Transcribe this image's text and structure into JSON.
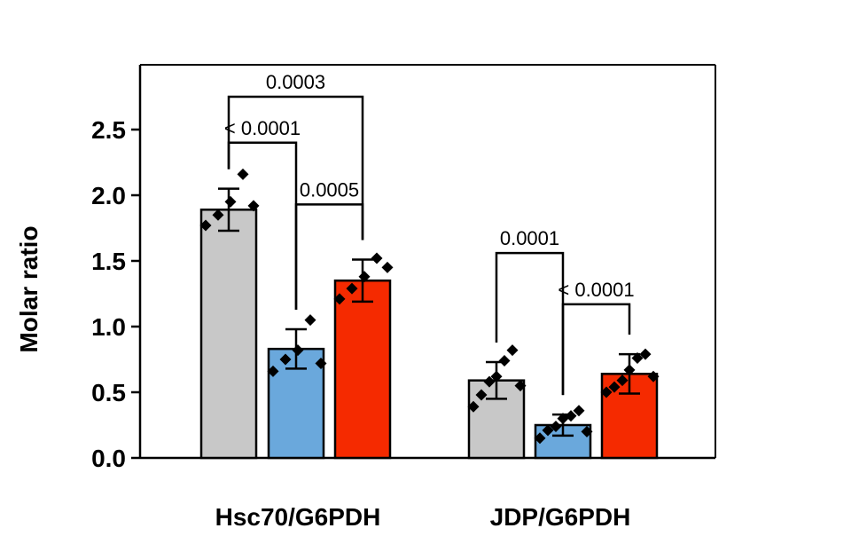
{
  "chart_data": {
    "type": "bar",
    "title": "",
    "ylabel": "Molar ratio",
    "xlabel": "",
    "ylim": [
      0,
      3.0
    ],
    "yticks": [
      0.0,
      0.5,
      1.0,
      1.5,
      2.0,
      2.5
    ],
    "ytick_labels": [
      "0.0",
      "0.5",
      "1.0",
      "1.5",
      "2.0",
      "2.5"
    ],
    "grid": false,
    "legend": "none",
    "categories": [
      "Hsc70/G6PDH",
      "JDP/G6PDH"
    ],
    "series": [
      {
        "color": "#c8c8c8",
        "values": [
          1.89,
          0.59
        ],
        "errors": [
          0.16,
          0.14
        ],
        "points": [
          [
            1.77,
            1.85,
            1.95,
            2.16,
            1.92
          ],
          [
            0.39,
            0.48,
            0.58,
            0.62,
            0.74,
            0.82,
            0.55
          ]
        ]
      },
      {
        "color": "#6aa8dc",
        "values": [
          0.83,
          0.25
        ],
        "errors": [
          0.15,
          0.08
        ],
        "points": [
          [
            0.66,
            0.75,
            0.82,
            1.05,
            0.72
          ],
          [
            0.15,
            0.21,
            0.24,
            0.3,
            0.32,
            0.36,
            0.2
          ]
        ]
      },
      {
        "color": "#f52a00",
        "values": [
          1.35,
          0.64
        ],
        "errors": [
          0.16,
          0.15
        ],
        "points": [
          [
            1.21,
            1.29,
            1.38,
            1.52,
            1.45
          ],
          [
            0.5,
            0.54,
            0.59,
            0.67,
            0.76,
            0.79,
            0.62
          ]
        ]
      }
    ],
    "annotations": [
      {
        "group": 0,
        "from": 0,
        "to": 1,
        "label": "< 0.0001",
        "y": 2.4
      },
      {
        "group": 0,
        "from": 0,
        "to": 2,
        "label": "0.0003",
        "y": 2.75
      },
      {
        "group": 0,
        "from": 1,
        "to": 2,
        "label": "0.0005",
        "y": 1.93
      },
      {
        "group": 1,
        "from": 0,
        "to": 1,
        "label": "0.0001",
        "y": 1.56
      },
      {
        "group": 1,
        "from": 1,
        "to": 2,
        "label": "< 0.0001",
        "y": 1.17
      }
    ]
  }
}
